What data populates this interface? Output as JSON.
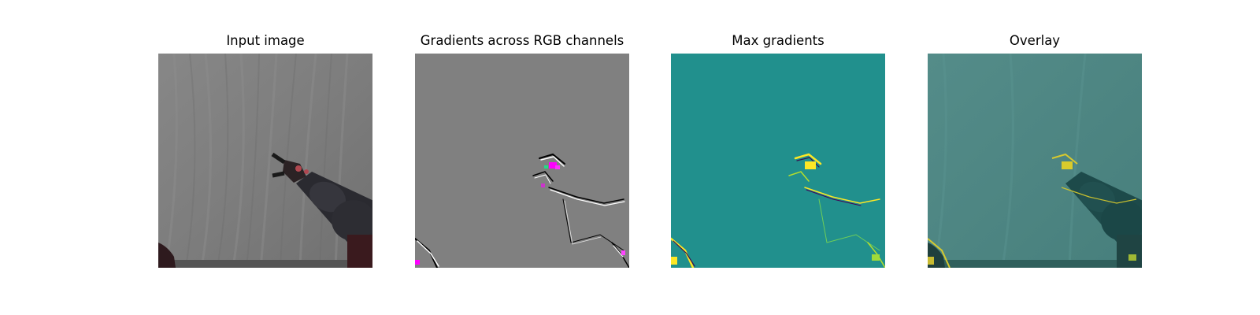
{
  "figure": {
    "panels": [
      {
        "title": "Input image"
      },
      {
        "title": "Gradients across RGB channels"
      },
      {
        "title": "Max gradients"
      },
      {
        "title": "Overlay"
      }
    ]
  },
  "colors": {
    "background": "#ffffff",
    "input_gray": "#7c7c7c",
    "gradient_gray": "#808080",
    "max_grad_teal": "#21908d",
    "overlay_teal": "#4c8582",
    "highlight_yellow": "#fde725",
    "magenta": "#ff00ff"
  }
}
